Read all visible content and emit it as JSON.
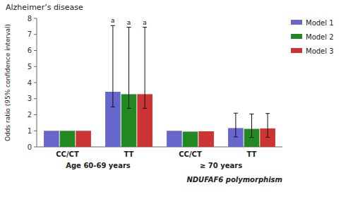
{
  "chart_data": {
    "type": "bar",
    "title": "Alzheimer’s disease",
    "ylabel": "Odds ratio (95% confidence interval)",
    "xlabel": "NDUFAF6 polymorphism",
    "categories": [
      "CC/CT",
      "TT",
      "CC/CT",
      "TT"
    ],
    "series": [
      {
        "name": "Model 1",
        "color": "#6666cc",
        "values": [
          1.0,
          3.43,
          1.0,
          1.17
        ],
        "error_low": [
          null,
          2.48,
          null,
          0.62
        ],
        "error_high": [
          null,
          7.55,
          null,
          2.1
        ]
      },
      {
        "name": "Model 2",
        "color": "#228822",
        "values": [
          1.0,
          3.28,
          0.95,
          1.12
        ],
        "error_low": [
          null,
          2.4,
          null,
          0.59
        ],
        "error_high": [
          null,
          7.45,
          null,
          2.05
        ]
      },
      {
        "name": "Model 3",
        "color": "#cc3333",
        "values": [
          1.0,
          3.28,
          0.97,
          1.15
        ],
        "error_low": [
          null,
          2.4,
          null,
          0.6
        ],
        "error_high": [
          null,
          7.45,
          null,
          2.08
        ]
      }
    ],
    "annotations": [
      {
        "text": "a",
        "series": 0,
        "category": 1
      },
      {
        "text": "a",
        "series": 1,
        "category": 1
      },
      {
        "text": "a",
        "series": 2,
        "category": 1
      },
      {
        "text": "Age 60-69 years",
        "category_span": [
          0,
          1
        ]
      },
      {
        "text": "≥ 70 years",
        "category_span": [
          2,
          3
        ]
      }
    ],
    "ylim": [
      0,
      8
    ],
    "yticks": [
      0,
      1,
      2,
      3,
      4,
      5,
      6,
      7,
      8
    ],
    "grid": false,
    "legend": "right"
  }
}
